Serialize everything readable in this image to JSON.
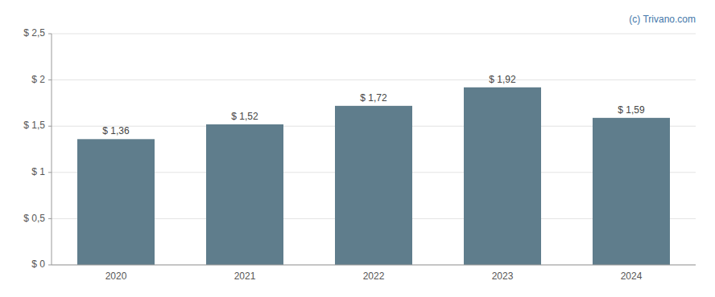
{
  "chart_data": {
    "type": "bar",
    "categories": [
      "2020",
      "2021",
      "2022",
      "2023",
      "2024"
    ],
    "values": [
      1.36,
      1.52,
      1.72,
      1.92,
      1.59
    ],
    "value_labels": [
      "$ 1,36",
      "$ 1,52",
      "$ 1,72",
      "$ 1,92",
      "$ 1,59"
    ],
    "data_labels": true,
    "color": "#5f7d8c",
    "ylim": [
      0,
      2.5
    ],
    "yticks": [
      {
        "value": 0,
        "label": "$ 0"
      },
      {
        "value": 0.5,
        "label": "$ 0,5"
      },
      {
        "value": 1.0,
        "label": "$ 1"
      },
      {
        "value": 1.5,
        "label": "$ 1,5"
      },
      {
        "value": 2.0,
        "label": "$ 2"
      },
      {
        "value": 2.5,
        "label": "$ 2,5"
      }
    ],
    "grid": true,
    "annotations": [
      "(c) Trivano.com"
    ]
  }
}
